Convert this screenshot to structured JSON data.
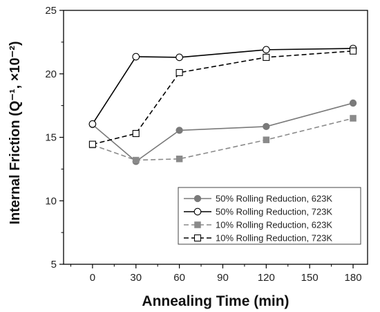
{
  "chart_data": {
    "type": "line",
    "xlabel": "Annealing Time (min)",
    "ylabel": "Internal Friction (Q⁻¹, ×10⁻²)",
    "x": [
      0,
      30,
      60,
      120,
      180
    ],
    "xlim": [
      -20,
      190
    ],
    "ylim": [
      5,
      25
    ],
    "xticks": [
      0,
      30,
      60,
      90,
      120,
      150,
      180
    ],
    "yticks": [
      5,
      10,
      15,
      20,
      25
    ],
    "xtick_labels": [
      "0",
      "30",
      "60",
      "90",
      "120",
      "150",
      "180"
    ],
    "ytick_labels": [
      "5",
      "10",
      "15",
      "20",
      "25"
    ],
    "grid": false,
    "legend_position": "bottom-right",
    "series": [
      {
        "name": "50% Rolling Reduction, 623K",
        "values": [
          16.0,
          13.1,
          15.55,
          15.85,
          17.7
        ],
        "marker": "filled-circle",
        "line": "solid",
        "color": "#7a7a7a"
      },
      {
        "name": "50% Rolling Reduction, 723K",
        "values": [
          16.05,
          21.35,
          21.3,
          21.9,
          22.0
        ],
        "marker": "open-circle",
        "line": "solid",
        "color": "#000000"
      },
      {
        "name": "10% Rolling Reduction, 623K",
        "values": [
          14.4,
          13.2,
          13.3,
          14.8,
          16.5
        ],
        "marker": "filled-square",
        "line": "dashed",
        "color": "#8a8a8a"
      },
      {
        "name": "10% Rolling Reduction, 723K",
        "values": [
          14.45,
          15.3,
          20.1,
          21.3,
          21.8
        ],
        "marker": "open-square",
        "line": "dashed",
        "color": "#000000"
      }
    ]
  }
}
